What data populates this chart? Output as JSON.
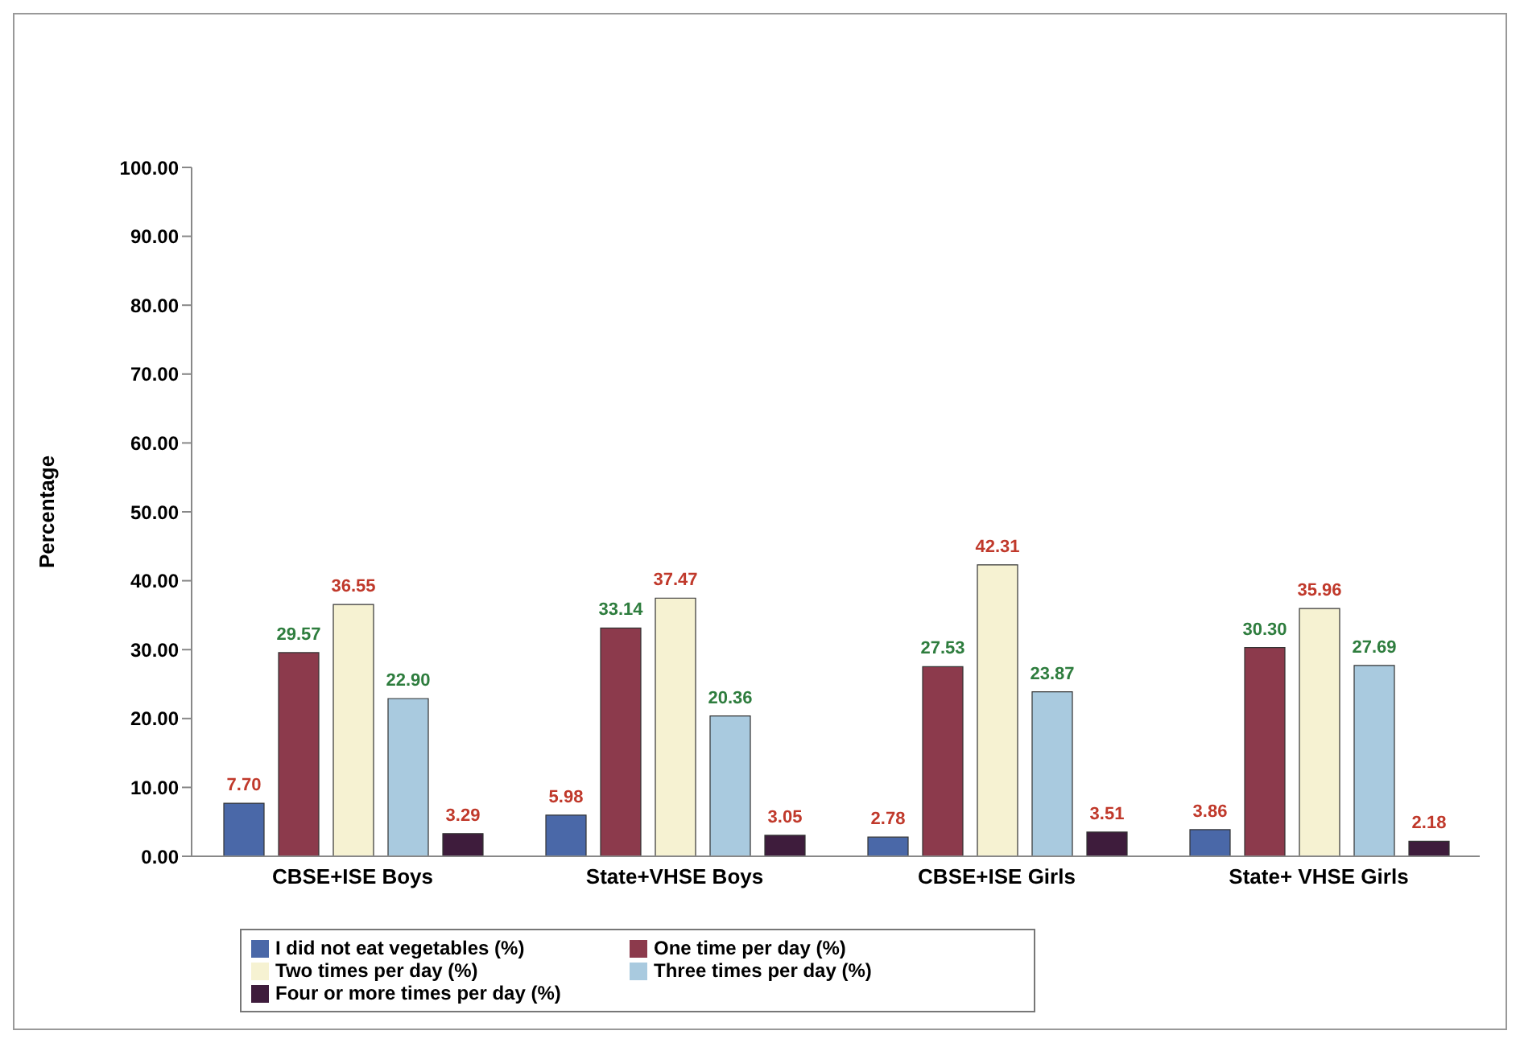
{
  "chart_data": {
    "type": "bar",
    "ylabel": "Percentage",
    "categories": [
      "CBSE+ISE Boys",
      "State+VHSE Boys",
      "CBSE+ISE Girls",
      "State+ VHSE Girls"
    ],
    "series": [
      {
        "name": "I did not eat vegetables (%)",
        "color": "#4a68a8",
        "values": [
          7.7,
          5.98,
          2.78,
          3.86
        ],
        "value_labels": [
          "7.70",
          "5.98",
          "2.78",
          "3.86"
        ]
      },
      {
        "name": "One time per day (%)",
        "color": "#8c3a4c",
        "values": [
          29.57,
          33.14,
          27.53,
          30.3
        ],
        "value_labels": [
          "29.57",
          "33.14",
          "27.53",
          "30.30"
        ]
      },
      {
        "name": "Two times per day (%)",
        "color": "#f6f2d2",
        "values": [
          36.55,
          37.47,
          42.31,
          35.96
        ],
        "value_labels": [
          "36.55",
          "37.47",
          "42.31",
          "35.96"
        ]
      },
      {
        "name": "Three times per day  (%)",
        "color": "#a9cadf",
        "values": [
          22.9,
          20.36,
          23.87,
          27.69
        ],
        "value_labels": [
          "22.90",
          "20.36",
          "23.87",
          "27.69"
        ]
      },
      {
        "name": "Four or more times per day (%)",
        "color": "#3e1c3c",
        "values": [
          3.29,
          3.05,
          3.51,
          2.18
        ],
        "value_labels": [
          "3.29",
          "3.05",
          "3.51",
          "2.18"
        ]
      }
    ],
    "ylim": [
      0,
      100
    ],
    "yticks": [
      {
        "value": 0,
        "label": "0.00"
      },
      {
        "value": 10,
        "label": "10.00"
      },
      {
        "value": 20,
        "label": "20.00"
      },
      {
        "value": 30,
        "label": "30.00"
      },
      {
        "value": 40,
        "label": "40.00"
      },
      {
        "value": 50,
        "label": "50.00"
      },
      {
        "value": 60,
        "label": "60.00"
      },
      {
        "value": 70,
        "label": "70.00"
      },
      {
        "value": 80,
        "label": "80.00"
      },
      {
        "value": 90,
        "label": "90.00"
      },
      {
        "value": 100,
        "label": "100.00"
      }
    ],
    "legend": "bottom",
    "grid": false
  }
}
